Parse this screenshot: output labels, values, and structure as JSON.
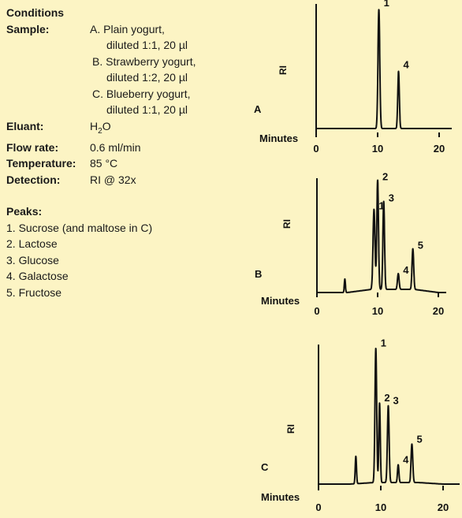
{
  "conditions": {
    "title": "Conditions",
    "sample_label": "Sample:",
    "sample_lines": [
      "A. Plain yogurt,",
      "diluted 1:1, 20 µl",
      "B. Strawberry yogurt,",
      "diluted 1:2, 20 µl",
      "C. Blueberry yogurt,",
      "diluted 1:1, 20 µl"
    ],
    "eluant_label": "Eluant:",
    "eluant_value": "H",
    "eluant_sub": "2",
    "eluant_tail": "O",
    "flow_label": "Flow rate:",
    "flow_value": "0.6 ml/min",
    "temp_label": "Temperature:",
    "temp_value": "85 °C",
    "detect_label": "Detection:",
    "detect_value": "RI @ 32x",
    "peaks_title": "Peaks:",
    "peaks": [
      "1. Sucrose (and maltose in C)",
      "2. Lactose",
      "3. Glucose",
      "4. Galactose",
      "5. Fructose"
    ]
  },
  "chart_data": [
    {
      "type": "line",
      "panel": "A",
      "ylabel": "RI",
      "xlabel": "Minutes",
      "xticks": [
        0,
        10,
        20
      ],
      "xlim": [
        0,
        23
      ],
      "grid": false,
      "peaks": [
        {
          "label": "1",
          "time": 10.2,
          "height": 1.0,
          "width": 0.32
        },
        {
          "label": "4",
          "time": 13.4,
          "height": 0.48,
          "width": 0.28
        }
      ]
    },
    {
      "type": "line",
      "panel": "B",
      "ylabel": "RI",
      "xlabel": "Minutes",
      "xticks": [
        0,
        10,
        20
      ],
      "xlim": [
        0,
        21
      ],
      "grid": false,
      "peaks": [
        {
          "label": "",
          "time": 4.6,
          "height": 0.12,
          "width": 0.2
        },
        {
          "label": "1",
          "time": 9.4,
          "height": 0.71,
          "width": 0.35
        },
        {
          "label": "2",
          "time": 10.0,
          "height": 0.97,
          "width": 0.3
        },
        {
          "label": "3",
          "time": 11.0,
          "height": 0.78,
          "width": 0.3
        },
        {
          "label": "4",
          "time": 13.4,
          "height": 0.14,
          "width": 0.3
        },
        {
          "label": "5",
          "time": 15.8,
          "height": 0.36,
          "width": 0.3
        }
      ]
    },
    {
      "type": "line",
      "panel": "C",
      "ylabel": "RI",
      "xlabel": "Minutes",
      "xticks": [
        0,
        10,
        20
      ],
      "xlim": [
        0,
        21
      ],
      "grid": false,
      "peaks": [
        {
          "label": "",
          "time": 6.0,
          "height": 0.2,
          "width": 0.22
        },
        {
          "label": "1",
          "time": 9.2,
          "height": 0.98,
          "width": 0.3
        },
        {
          "label": "2",
          "time": 9.8,
          "height": 0.58,
          "width": 0.25
        },
        {
          "label": "3",
          "time": 11.2,
          "height": 0.56,
          "width": 0.3
        },
        {
          "label": "4",
          "time": 12.8,
          "height": 0.13,
          "width": 0.25
        },
        {
          "label": "5",
          "time": 15.0,
          "height": 0.28,
          "width": 0.3
        }
      ]
    }
  ]
}
